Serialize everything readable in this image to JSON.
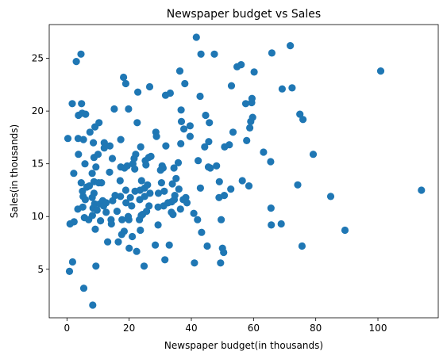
{
  "chart_data": {
    "type": "scatter",
    "title": "Newspaper budget vs Sales",
    "xlabel": "Newspaper budget(in thousands)",
    "ylabel": "Sales(in thousands)",
    "xlim": [
      -5.7,
      119.4
    ],
    "ylim": [
      0.4,
      28.2
    ],
    "xticks": [
      0,
      20,
      40,
      60,
      80,
      100
    ],
    "yticks": [
      5,
      10,
      15,
      20,
      25
    ],
    "grid": false,
    "legend": "none",
    "marker_color": "#1f77b4",
    "points": [
      [
        0.3,
        17.4
      ],
      [
        0.8,
        4.8
      ],
      [
        1.0,
        9.3
      ],
      [
        1.7,
        20.7
      ],
      [
        1.8,
        5.7
      ],
      [
        2.2,
        14.1
      ],
      [
        2.3,
        9.5
      ],
      [
        3.0,
        24.7
      ],
      [
        3.5,
        10.7
      ],
      [
        3.6,
        17.4
      ],
      [
        3.7,
        19.6
      ],
      [
        3.7,
        15.9
      ],
      [
        4.5,
        25.4
      ],
      [
        4.6,
        13.2
      ],
      [
        4.7,
        20.7
      ],
      [
        4.9,
        19.8
      ],
      [
        5.0,
        12.4
      ],
      [
        5.1,
        10.9
      ],
      [
        5.2,
        11.9
      ],
      [
        5.3,
        17.3
      ],
      [
        5.4,
        3.2
      ],
      [
        5.6,
        9.9
      ],
      [
        5.8,
        15.0
      ],
      [
        5.9,
        11.6
      ],
      [
        6.0,
        19.7
      ],
      [
        6.4,
        12.8
      ],
      [
        7.0,
        9.7
      ],
      [
        7.2,
        12.9
      ],
      [
        7.4,
        18.0
      ],
      [
        8.1,
        14.1
      ],
      [
        8.1,
        11.8
      ],
      [
        8.2,
        10.1
      ],
      [
        8.3,
        1.6
      ],
      [
        8.4,
        10.8
      ],
      [
        8.5,
        17.0
      ],
      [
        8.7,
        15.6
      ],
      [
        8.7,
        12.2
      ],
      [
        8.7,
        13.3
      ],
      [
        8.9,
        11.2
      ],
      [
        9.0,
        18.5
      ],
      [
        9.1,
        8.8
      ],
      [
        9.3,
        5.3
      ],
      [
        9.3,
        14.7
      ],
      [
        9.7,
        10.6
      ],
      [
        10.0,
        15.9
      ],
      [
        10.2,
        13.2
      ],
      [
        10.3,
        18.9
      ],
      [
        10.5,
        11.2
      ],
      [
        10.8,
        9.6
      ],
      [
        11.1,
        13.2
      ],
      [
        11.5,
        11.5
      ],
      [
        11.8,
        11.0
      ],
      [
        12.0,
        16.5
      ],
      [
        12.0,
        17.0
      ],
      [
        12.6,
        11.3
      ],
      [
        12.6,
        10.4
      ],
      [
        13.1,
        7.6
      ],
      [
        13.7,
        14.2
      ],
      [
        13.8,
        16.7
      ],
      [
        14.2,
        9.7
      ],
      [
        14.3,
        9.3
      ],
      [
        14.6,
        15.5
      ],
      [
        14.7,
        11.5
      ],
      [
        15.2,
        20.2
      ],
      [
        15.5,
        12.0
      ],
      [
        16.1,
        10.5
      ],
      [
        16.5,
        7.6
      ],
      [
        17.1,
        13.4
      ],
      [
        17.2,
        11.9
      ],
      [
        17.3,
        14.7
      ],
      [
        17.3,
        17.3
      ],
      [
        17.6,
        8.3
      ],
      [
        17.7,
        9.7
      ],
      [
        18.2,
        23.2
      ],
      [
        18.4,
        8.6
      ],
      [
        18.5,
        14.6
      ],
      [
        18.9,
        22.6
      ],
      [
        18.9,
        12.5
      ],
      [
        19.0,
        11.3
      ],
      [
        19.4,
        14.8
      ],
      [
        19.7,
        10.0
      ],
      [
        19.8,
        20.2
      ],
      [
        19.9,
        9.7
      ],
      [
        20.0,
        7.0
      ],
      [
        20.4,
        11.8
      ],
      [
        20.8,
        11.0
      ],
      [
        21.0,
        8.1
      ],
      [
        21.2,
        15.0
      ],
      [
        21.6,
        15.5
      ],
      [
        21.8,
        14.5
      ],
      [
        21.9,
        12.4
      ],
      [
        22.1,
        15.9
      ],
      [
        22.4,
        6.7
      ],
      [
        22.6,
        18.9
      ],
      [
        22.8,
        21.8
      ],
      [
        23.3,
        9.7
      ],
      [
        23.4,
        11.6
      ],
      [
        23.5,
        12.5
      ],
      [
        23.6,
        8.7
      ],
      [
        23.7,
        16.6
      ],
      [
        23.9,
        10.1
      ],
      [
        24.0,
        13.4
      ],
      [
        24.3,
        10.2
      ],
      [
        24.8,
        5.3
      ],
      [
        25.0,
        12.7
      ],
      [
        25.0,
        11.9
      ],
      [
        25.2,
        15.3
      ],
      [
        25.4,
        14.9
      ],
      [
        25.6,
        10.5
      ],
      [
        25.9,
        13.0
      ],
      [
        26.3,
        15.6
      ],
      [
        26.4,
        11.0
      ],
      [
        26.6,
        22.3
      ],
      [
        26.7,
        12.2
      ],
      [
        27.0,
        15.7
      ],
      [
        28.4,
        7.3
      ],
      [
        28.6,
        18.0
      ],
      [
        28.8,
        17.6
      ],
      [
        29.3,
        10.9
      ],
      [
        29.3,
        9.2
      ],
      [
        29.4,
        12.2
      ],
      [
        30.1,
        14.4
      ],
      [
        30.4,
        13.2
      ],
      [
        30.6,
        14.8
      ],
      [
        30.9,
        14.6
      ],
      [
        31.1,
        11.0
      ],
      [
        31.3,
        12.4
      ],
      [
        31.5,
        5.9
      ],
      [
        31.7,
        21.5
      ],
      [
        31.8,
        16.7
      ],
      [
        32.5,
        11.3
      ],
      [
        32.9,
        7.3
      ],
      [
        33.2,
        21.7
      ],
      [
        33.6,
        10.4
      ],
      [
        33.7,
        11.4
      ],
      [
        33.9,
        13.1
      ],
      [
        34.1,
        10.2
      ],
      [
        34.4,
        14.6
      ],
      [
        34.5,
        11.6
      ],
      [
        34.7,
        12.0
      ],
      [
        35.1,
        13.6
      ],
      [
        35.8,
        15.1
      ],
      [
        36.0,
        12.6
      ],
      [
        36.3,
        23.8
      ],
      [
        36.5,
        10.7
      ],
      [
        36.6,
        16.9
      ],
      [
        36.7,
        20.1
      ],
      [
        36.8,
        19.0
      ],
      [
        37.4,
        11.6
      ],
      [
        37.6,
        18.3
      ],
      [
        37.9,
        22.6
      ],
      [
        38.2,
        11.8
      ],
      [
        38.6,
        11.3
      ],
      [
        39.6,
        17.6
      ],
      [
        39.6,
        18.6
      ],
      [
        40.8,
        10.3
      ],
      [
        41.0,
        5.6
      ],
      [
        41.6,
        27.0
      ],
      [
        42.0,
        9.7
      ],
      [
        42.2,
        15.3
      ],
      [
        42.8,
        21.4
      ],
      [
        42.9,
        12.7
      ],
      [
        43.1,
        25.4
      ],
      [
        43.3,
        8.5
      ],
      [
        44.3,
        16.6
      ],
      [
        44.6,
        19.6
      ],
      [
        45.1,
        7.2
      ],
      [
        45.5,
        14.7
      ],
      [
        45.6,
        17.1
      ],
      [
        45.8,
        18.9
      ],
      [
        46.1,
        14.6
      ],
      [
        47.4,
        25.4
      ],
      [
        48.1,
        14.8
      ],
      [
        48.9,
        11.8
      ],
      [
        49.0,
        13.3
      ],
      [
        49.4,
        5.6
      ],
      [
        49.6,
        9.7
      ],
      [
        50.0,
        7.0
      ],
      [
        50.4,
        6.6
      ],
      [
        50.6,
        12.0
      ],
      [
        50.7,
        16.6
      ],
      [
        52.2,
        16.8
      ],
      [
        52.7,
        12.6
      ],
      [
        52.9,
        22.4
      ],
      [
        53.4,
        18.0
      ],
      [
        54.7,
        24.2
      ],
      [
        56.0,
        24.4
      ],
      [
        56.4,
        13.4
      ],
      [
        57.5,
        20.7
      ],
      [
        57.8,
        17.2
      ],
      [
        58.5,
        12.9
      ],
      [
        58.8,
        18.4
      ],
      [
        59.1,
        19.0
      ],
      [
        59.4,
        20.8
      ],
      [
        59.5,
        21.2
      ],
      [
        59.7,
        19.4
      ],
      [
        60.2,
        23.7
      ],
      [
        63.2,
        16.1
      ],
      [
        65.5,
        15.2
      ],
      [
        65.6,
        10.8
      ],
      [
        65.7,
        9.2
      ],
      [
        65.9,
        25.5
      ],
      [
        68.9,
        9.3
      ],
      [
        69.2,
        22.1
      ],
      [
        71.8,
        26.2
      ],
      [
        72.4,
        22.2
      ],
      [
        74.2,
        13.0
      ],
      [
        74.9,
        19.7
      ],
      [
        75.6,
        7.2
      ],
      [
        75.9,
        19.2
      ],
      [
        79.2,
        15.9
      ],
      [
        84.8,
        11.9
      ],
      [
        89.4,
        8.7
      ],
      [
        100.9,
        23.8
      ],
      [
        114.0,
        12.5
      ]
    ]
  }
}
